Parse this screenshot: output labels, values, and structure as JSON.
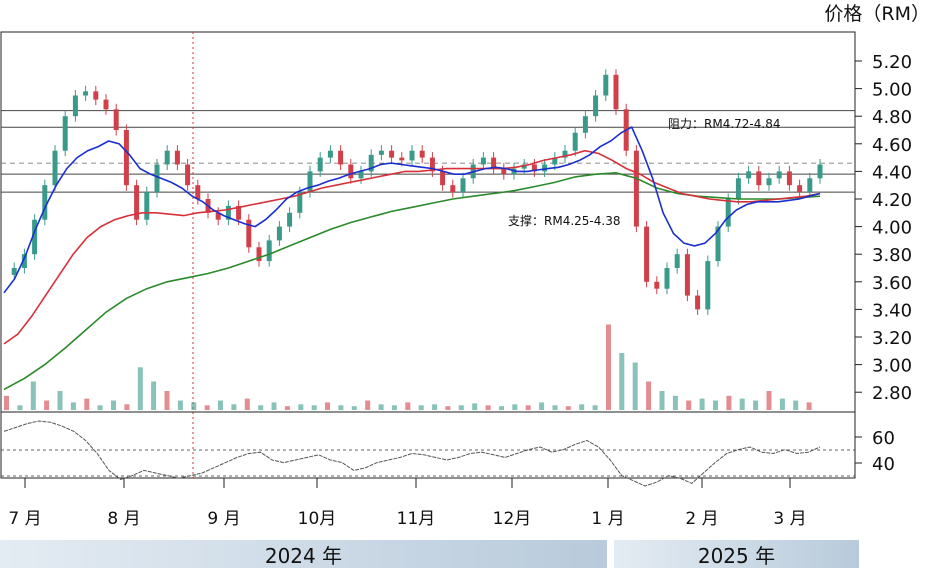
{
  "chart_data": {
    "type": "candlestick",
    "unit_label": "价格（RM）",
    "y_ticks": [
      "5.20",
      "5.00",
      "4.80",
      "4.60",
      "4.40",
      "4.20",
      "4.00",
      "3.80",
      "3.60",
      "3.40",
      "3.20",
      "3.00",
      "2.80"
    ],
    "ylim": [
      2.72,
      5.32
    ],
    "rsi_ticks": [
      "60",
      "40"
    ],
    "months": [
      "7 月",
      "8 月",
      "9 月",
      "10月",
      "11月",
      "12月",
      "1 月",
      "2 月",
      "3 月"
    ],
    "years": [
      "2024 年",
      "2025 年"
    ],
    "resistance": {
      "label": "阻力：RM4.72-4.84",
      "low": 4.72,
      "high": 4.84
    },
    "support": {
      "label": "支撑：RM4.25-4.38",
      "low": 4.25,
      "high": 4.38
    },
    "dashed_level": 4.46,
    "price_path": [
      3.65,
      3.7,
      3.8,
      4.05,
      4.3,
      4.55,
      4.8,
      4.95,
      4.98,
      4.92,
      4.85,
      4.7,
      4.3,
      4.05,
      4.25,
      4.45,
      4.55,
      4.45,
      4.3,
      4.2,
      4.1,
      4.05,
      4.15,
      4.05,
      3.85,
      3.75,
      3.9,
      4.0,
      4.1,
      4.25,
      4.4,
      4.5,
      4.55,
      4.45,
      4.35,
      4.4,
      4.52,
      4.55,
      4.5,
      4.48,
      4.55,
      4.5,
      4.4,
      4.3,
      4.25,
      4.35,
      4.45,
      4.5,
      4.42,
      4.38,
      4.42,
      4.45,
      4.4,
      4.45,
      4.5,
      4.55,
      4.68,
      4.8,
      4.95,
      5.1,
      4.85,
      4.55,
      4.0,
      3.6,
      3.55,
      3.7,
      3.8,
      3.5,
      3.4,
      3.75,
      4.0,
      4.2,
      4.35,
      4.4,
      4.3,
      4.35,
      4.4,
      4.3,
      4.25,
      4.35,
      4.45
    ],
    "ema_blue": [
      3.52,
      3.62,
      3.78,
      3.98,
      4.15,
      4.3,
      4.42,
      4.5,
      4.55,
      4.58,
      4.62,
      4.6,
      4.52,
      4.42,
      4.38,
      4.35,
      4.32,
      4.28,
      4.22,
      4.18,
      4.12,
      4.08,
      4.05,
      4.02,
      4.0,
      4.05,
      4.12,
      4.2,
      4.25,
      4.28,
      4.3,
      4.33,
      4.35,
      4.38,
      4.4,
      4.42,
      4.45,
      4.46,
      4.45,
      4.44,
      4.43,
      4.42,
      4.4,
      4.38,
      4.38,
      4.4,
      4.42,
      4.43,
      4.42,
      4.4,
      4.4,
      4.41,
      4.42,
      4.43,
      4.45,
      4.48,
      4.52,
      4.58,
      4.62,
      4.68,
      4.72,
      4.55,
      4.35,
      4.1,
      3.95,
      3.88,
      3.86,
      3.88,
      3.95,
      4.05,
      4.12,
      4.16,
      4.18,
      4.18,
      4.18,
      4.19,
      4.2,
      4.22,
      4.24
    ],
    "ema_red": [
      3.15,
      3.22,
      3.35,
      3.5,
      3.65,
      3.8,
      3.92,
      4.0,
      4.05,
      4.08,
      4.1,
      4.1,
      4.09,
      4.08,
      4.1,
      4.11,
      4.12,
      4.14,
      4.16,
      4.18,
      4.2,
      4.22,
      4.25,
      4.28,
      4.3,
      4.32,
      4.34,
      4.36,
      4.38,
      4.4,
      4.4,
      4.41,
      4.42,
      4.42,
      4.42,
      4.42,
      4.42,
      4.43,
      4.45,
      4.48,
      4.5,
      4.52,
      4.55,
      4.53,
      4.48,
      4.42,
      4.38,
      4.32,
      4.28,
      4.24,
      4.22,
      4.2,
      4.19,
      4.18,
      4.18,
      4.19,
      4.2,
      4.21,
      4.22,
      4.24
    ],
    "ema_green": [
      2.82,
      2.9,
      3.0,
      3.12,
      3.25,
      3.38,
      3.48,
      3.55,
      3.6,
      3.63,
      3.66,
      3.7,
      3.75,
      3.8,
      3.86,
      3.92,
      3.98,
      4.03,
      4.07,
      4.11,
      4.14,
      4.17,
      4.2,
      4.22,
      4.24,
      4.26,
      4.29,
      4.32,
      4.36,
      4.38,
      4.39,
      4.35,
      4.28,
      4.24,
      4.22,
      4.21,
      4.2,
      4.2,
      4.2,
      4.21,
      4.22
    ],
    "rsi_path": [
      72,
      75,
      78,
      80,
      79,
      76,
      72,
      65,
      55,
      42,
      35,
      38,
      42,
      40,
      38,
      36,
      38,
      40,
      44,
      48,
      52,
      55,
      56,
      50,
      48,
      50,
      52,
      54,
      50,
      48,
      42,
      44,
      48,
      50,
      52,
      55,
      54,
      52,
      50,
      52,
      55,
      56,
      54,
      52,
      55,
      58,
      60,
      56,
      58,
      62,
      65,
      60,
      50,
      38,
      34,
      30,
      33,
      38,
      36,
      32,
      40,
      48,
      55,
      58,
      60,
      56,
      55,
      58,
      55,
      56,
      60
    ],
    "volume": [
      0.15,
      0.05,
      0.3,
      0.1,
      0.2,
      0.08,
      0.12,
      0.05,
      0.1,
      0.06,
      0.45,
      0.3,
      0.2,
      0.1,
      0.08,
      0.05,
      0.1,
      0.06,
      0.12,
      0.05,
      0.08,
      0.04,
      0.06,
      0.05,
      0.08,
      0.05,
      0.04,
      0.1,
      0.06,
      0.05,
      0.08,
      0.05,
      0.06,
      0.04,
      0.05,
      0.07,
      0.05,
      0.04,
      0.06,
      0.05,
      0.08,
      0.05,
      0.04,
      0.06,
      0.05,
      0.9,
      0.6,
      0.5,
      0.3,
      0.2,
      0.15,
      0.1,
      0.12,
      0.1,
      0.15,
      0.12,
      0.1,
      0.2,
      0.12,
      0.1,
      0.08
    ]
  },
  "colors": {
    "up": "#3a9a8a",
    "down": "#d0404a",
    "ema_blue": "#1a2fd0",
    "ema_red": "#d8303a",
    "ema_green": "#2a8a2a",
    "year_bar": "#c9d6e3"
  }
}
